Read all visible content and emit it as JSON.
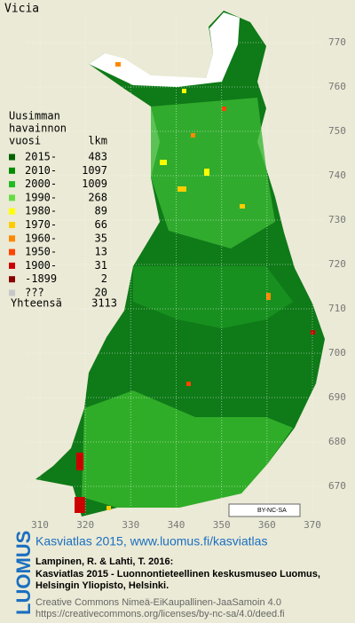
{
  "title": "Vicia",
  "legend": {
    "heading": [
      "Uusimman",
      "havainnon",
      "vuosi"
    ],
    "count_heading": "lkm",
    "rows": [
      {
        "label": "2015-",
        "count": 483,
        "color": "#006400"
      },
      {
        "label": "2010-",
        "count": 1097,
        "color": "#008c00"
      },
      {
        "label": "2000-",
        "count": 1009,
        "color": "#22bb22"
      },
      {
        "label": "1990-",
        "count": 268,
        "color": "#66dd44"
      },
      {
        "label": "1980-",
        "count": 89,
        "color": "#ffff00"
      },
      {
        "label": "1970-",
        "count": 66,
        "color": "#ffcc00"
      },
      {
        "label": "1960-",
        "count": 35,
        "color": "#ff8800"
      },
      {
        "label": "1950-",
        "count": 13,
        "color": "#ff4400"
      },
      {
        "label": "1900-",
        "count": 31,
        "color": "#cc0000"
      },
      {
        "label": "-1899",
        "count": 2,
        "color": "#880000"
      },
      {
        "label": "???",
        "count": 20,
        "color": "#c8c8c8"
      }
    ],
    "total_label": "Yhteensä",
    "total": 3113
  },
  "axes": {
    "xlim": [
      310,
      370
    ],
    "ylim": [
      670,
      770
    ],
    "xticks": [
      310,
      320,
      330,
      340,
      350,
      360,
      370
    ],
    "yticks": [
      670,
      680,
      690,
      700,
      710,
      720,
      730,
      740,
      750,
      760,
      770
    ]
  },
  "badge": "BY-NC-SA",
  "footer": {
    "brand": "LUOMUS",
    "headline": "Kasviatlas 2015, www.luomus.fi/kasviatlas",
    "citation": [
      "Lampinen, R. & Lahti, T. 2016:",
      "Kasviatlas 2015 - Luonnontieteellinen keskusmuseo Luomus,",
      "Helsingin Yliopisto, Helsinki."
    ],
    "license": [
      "Creative Commons Nimeä-EiKaupallinen-JaaSamoin 4.0",
      "https://creativecommons.org/licenses/by-nc-sa/4.0/deed.fi"
    ]
  }
}
